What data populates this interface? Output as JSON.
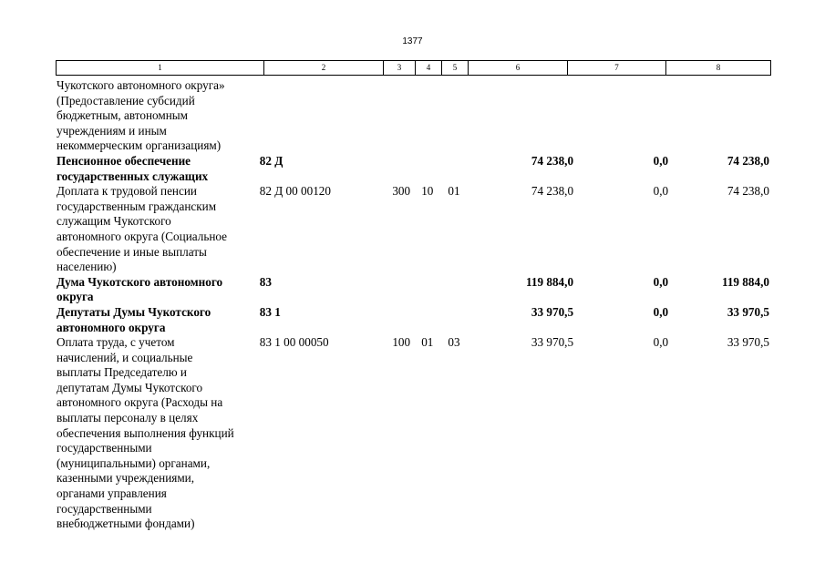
{
  "page_number": "1377",
  "header_columns": [
    "1",
    "2",
    "3",
    "4",
    "5",
    "6",
    "7",
    "8"
  ],
  "rows": [
    {
      "bold": false,
      "name": "Чукотского автономного округа» (Предоставление субсидий бюджетным, автономным учреждениям и иным некоммерческим организациям)",
      "name_lines": [
        "Чукотского автономного округа»",
        "(Предоставление субсидий",
        "бюджетным, автономным",
        "учреждениям и иным",
        "некоммерческим организациям)"
      ],
      "code": "",
      "vr": "",
      "rz": "",
      "pr": "",
      "sum1": "",
      "sum2": "",
      "sum3": ""
    },
    {
      "bold": true,
      "name_lines": [
        "Пенсионное обеспечение",
        "государственных служащих"
      ],
      "code": "82 Д",
      "vr": "",
      "rz": "",
      "pr": "",
      "sum1": "74 238,0",
      "sum2": "0,0",
      "sum3": "74 238,0"
    },
    {
      "bold": false,
      "name_lines": [
        "Доплата к трудовой пенсии",
        "государственным гражданским",
        "служащим Чукотского",
        "автономного округа (Социальное",
        "обеспечение и иные выплаты",
        "населению)"
      ],
      "code": "82 Д 00 00120",
      "vr": "300",
      "rz": "10",
      "pr": "01",
      "sum1": "74 238,0",
      "sum2": "0,0",
      "sum3": "74 238,0"
    },
    {
      "bold": true,
      "name_lines": [
        "Дума Чукотского автономного",
        "округа"
      ],
      "code": "83",
      "vr": "",
      "rz": "",
      "pr": "",
      "sum1": "119 884,0",
      "sum2": "0,0",
      "sum3": "119 884,0"
    },
    {
      "bold": true,
      "name_lines": [
        "Депутаты Думы Чукотского",
        "автономного округа"
      ],
      "code": "83 1",
      "vr": "",
      "rz": "",
      "pr": "",
      "sum1": "33 970,5",
      "sum2": "0,0",
      "sum3": "33 970,5"
    },
    {
      "bold": false,
      "name_lines": [
        "Оплата труда, с учетом",
        "начислений, и социальные",
        "выплаты Председателю и",
        "депутатам Думы Чукотского",
        "автономного округа (Расходы на",
        "выплаты персоналу в целях",
        "обеспечения выполнения функций",
        "государственными",
        "(муниципальными) органами,",
        "казенными учреждениями,",
        "органами управления",
        "государственными",
        "внебюджетными фондами)"
      ],
      "code": "83 1 00 00050",
      "vr": "100",
      "rz": "01",
      "pr": "03",
      "sum1": "33 970,5",
      "sum2": "0,0",
      "sum3": "33 970,5"
    }
  ]
}
